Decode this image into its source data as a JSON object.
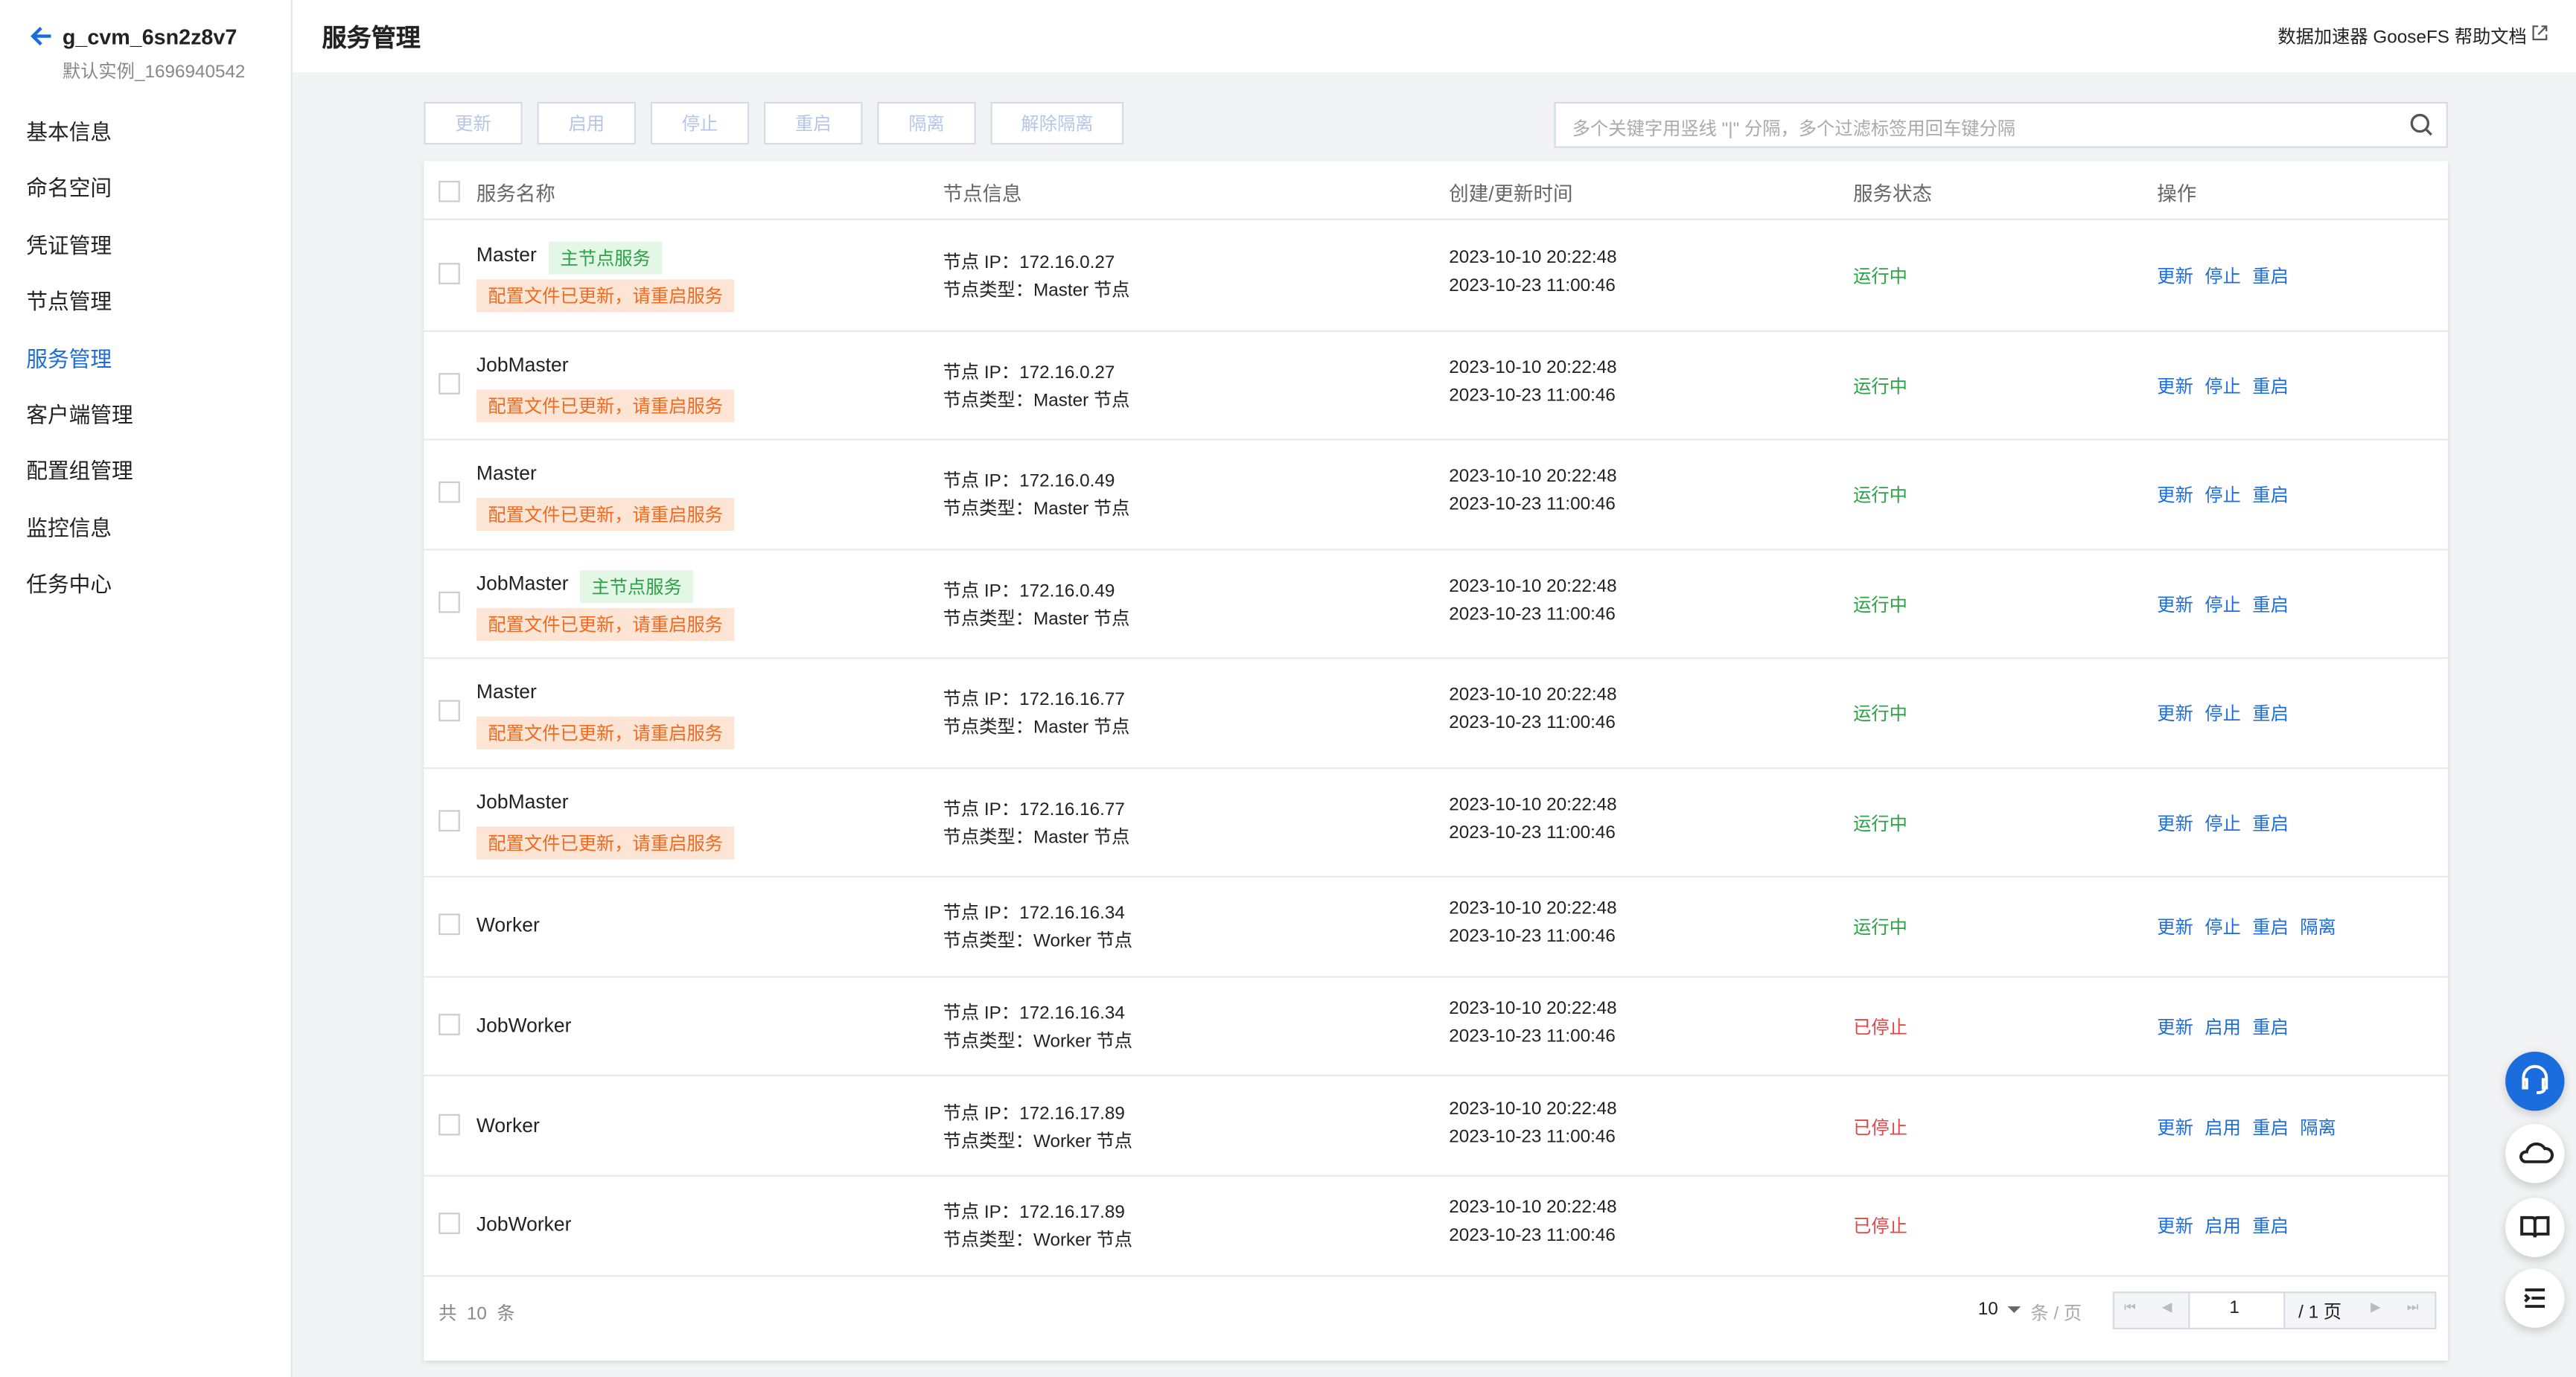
{
  "sidebar": {
    "instance_name": "g_cvm_6sn2z8v7",
    "instance_id": "默认实例_1696940542",
    "nav": [
      "基本信息",
      "命名空间",
      "凭证管理",
      "节点管理",
      "服务管理",
      "客户端管理",
      "配置组管理",
      "监控信息",
      "任务中心"
    ],
    "active": 4
  },
  "header": {
    "title": "服务管理",
    "links": [
      "数据加速器 GooseFS 帮助文档"
    ]
  },
  "toolbar": {
    "buttons": [
      "更新",
      "启用",
      "停止",
      "重启",
      "隔离",
      "解除隔离"
    ],
    "search_placeholder": "多个关键字用竖线 \"|\" 分隔，多个过滤标签用回车键分隔"
  },
  "table": {
    "columns": [
      "服务名称",
      "节点信息",
      "创建/更新时间",
      "服务状态",
      "操作"
    ],
    "rows": [
      {
        "name": "Master",
        "tag": "主节点服务",
        "warning": "配置文件已更新，请重启服务",
        "ip": "节点 IP：172.16.0.27",
        "node_type": "节点类型：Master 节点",
        "created": "2023-10-10 20:22:48",
        "updated": "2023-10-23 11:00:46",
        "status": "运行中",
        "actions": [
          "更新",
          "停止",
          "重启"
        ]
      },
      {
        "name": "JobMaster",
        "warning": "配置文件已更新，请重启服务",
        "ip": "节点 IP：172.16.0.27",
        "node_type": "节点类型：Master 节点",
        "created": "2023-10-10 20:22:48",
        "updated": "2023-10-23 11:00:46",
        "status": "运行中",
        "actions": [
          "更新",
          "停止",
          "重启"
        ]
      },
      {
        "name": "Master",
        "warning": "配置文件已更新，请重启服务",
        "ip": "节点 IP：172.16.0.49",
        "node_type": "节点类型：Master 节点",
        "created": "2023-10-10 20:22:48",
        "updated": "2023-10-23 11:00:46",
        "status": "运行中",
        "actions": [
          "更新",
          "停止",
          "重启"
        ]
      },
      {
        "name": "JobMaster",
        "tag": "主节点服务",
        "warning": "配置文件已更新，请重启服务",
        "ip": "节点 IP：172.16.0.49",
        "node_type": "节点类型：Master 节点",
        "created": "2023-10-10 20:22:48",
        "updated": "2023-10-23 11:00:46",
        "status": "运行中",
        "actions": [
          "更新",
          "停止",
          "重启"
        ]
      },
      {
        "name": "Master",
        "warning": "配置文件已更新，请重启服务",
        "ip": "节点 IP：172.16.16.77",
        "node_type": "节点类型：Master 节点",
        "created": "2023-10-10 20:22:48",
        "updated": "2023-10-23 11:00:46",
        "status": "运行中",
        "actions": [
          "更新",
          "停止",
          "重启"
        ]
      },
      {
        "name": "JobMaster",
        "warning": "配置文件已更新，请重启服务",
        "ip": "节点 IP：172.16.16.77",
        "node_type": "节点类型：Master 节点",
        "created": "2023-10-10 20:22:48",
        "updated": "2023-10-23 11:00:46",
        "status": "运行中",
        "actions": [
          "更新",
          "停止",
          "重启"
        ]
      },
      {
        "name": "Worker",
        "ip": "节点 IP：172.16.16.34",
        "node_type": "节点类型：Worker 节点",
        "created": "2023-10-10 20:22:48",
        "updated": "2023-10-23 11:00:46",
        "status": "运行中",
        "actions": [
          "更新",
          "停止",
          "重启",
          "隔离"
        ]
      },
      {
        "name": "JobWorker",
        "ip": "节点 IP：172.16.16.34",
        "node_type": "节点类型：Worker 节点",
        "created": "2023-10-10 20:22:48",
        "updated": "2023-10-23 11:00:46",
        "status": "已停止",
        "actions": [
          "更新",
          "启用",
          "重启"
        ]
      },
      {
        "name": "Worker",
        "ip": "节点 IP：172.16.17.89",
        "node_type": "节点类型：Worker 节点",
        "created": "2023-10-10 20:22:48",
        "updated": "2023-10-23 11:00:46",
        "status": "已停止",
        "actions": [
          "更新",
          "启用",
          "重启",
          "隔离"
        ]
      },
      {
        "name": "JobWorker",
        "ip": "节点 IP：172.16.17.89",
        "node_type": "节点类型：Worker 节点",
        "created": "2023-10-10 20:22:48",
        "updated": "2023-10-23 11:00:46",
        "status": "已停止",
        "actions": [
          "更新",
          "启用",
          "重启"
        ]
      }
    ]
  },
  "pagination": {
    "total": "共  10  条",
    "page_size": "10",
    "page_size_unit": "条 / 页",
    "page": "1",
    "page_total": "/ 1 页"
  }
}
